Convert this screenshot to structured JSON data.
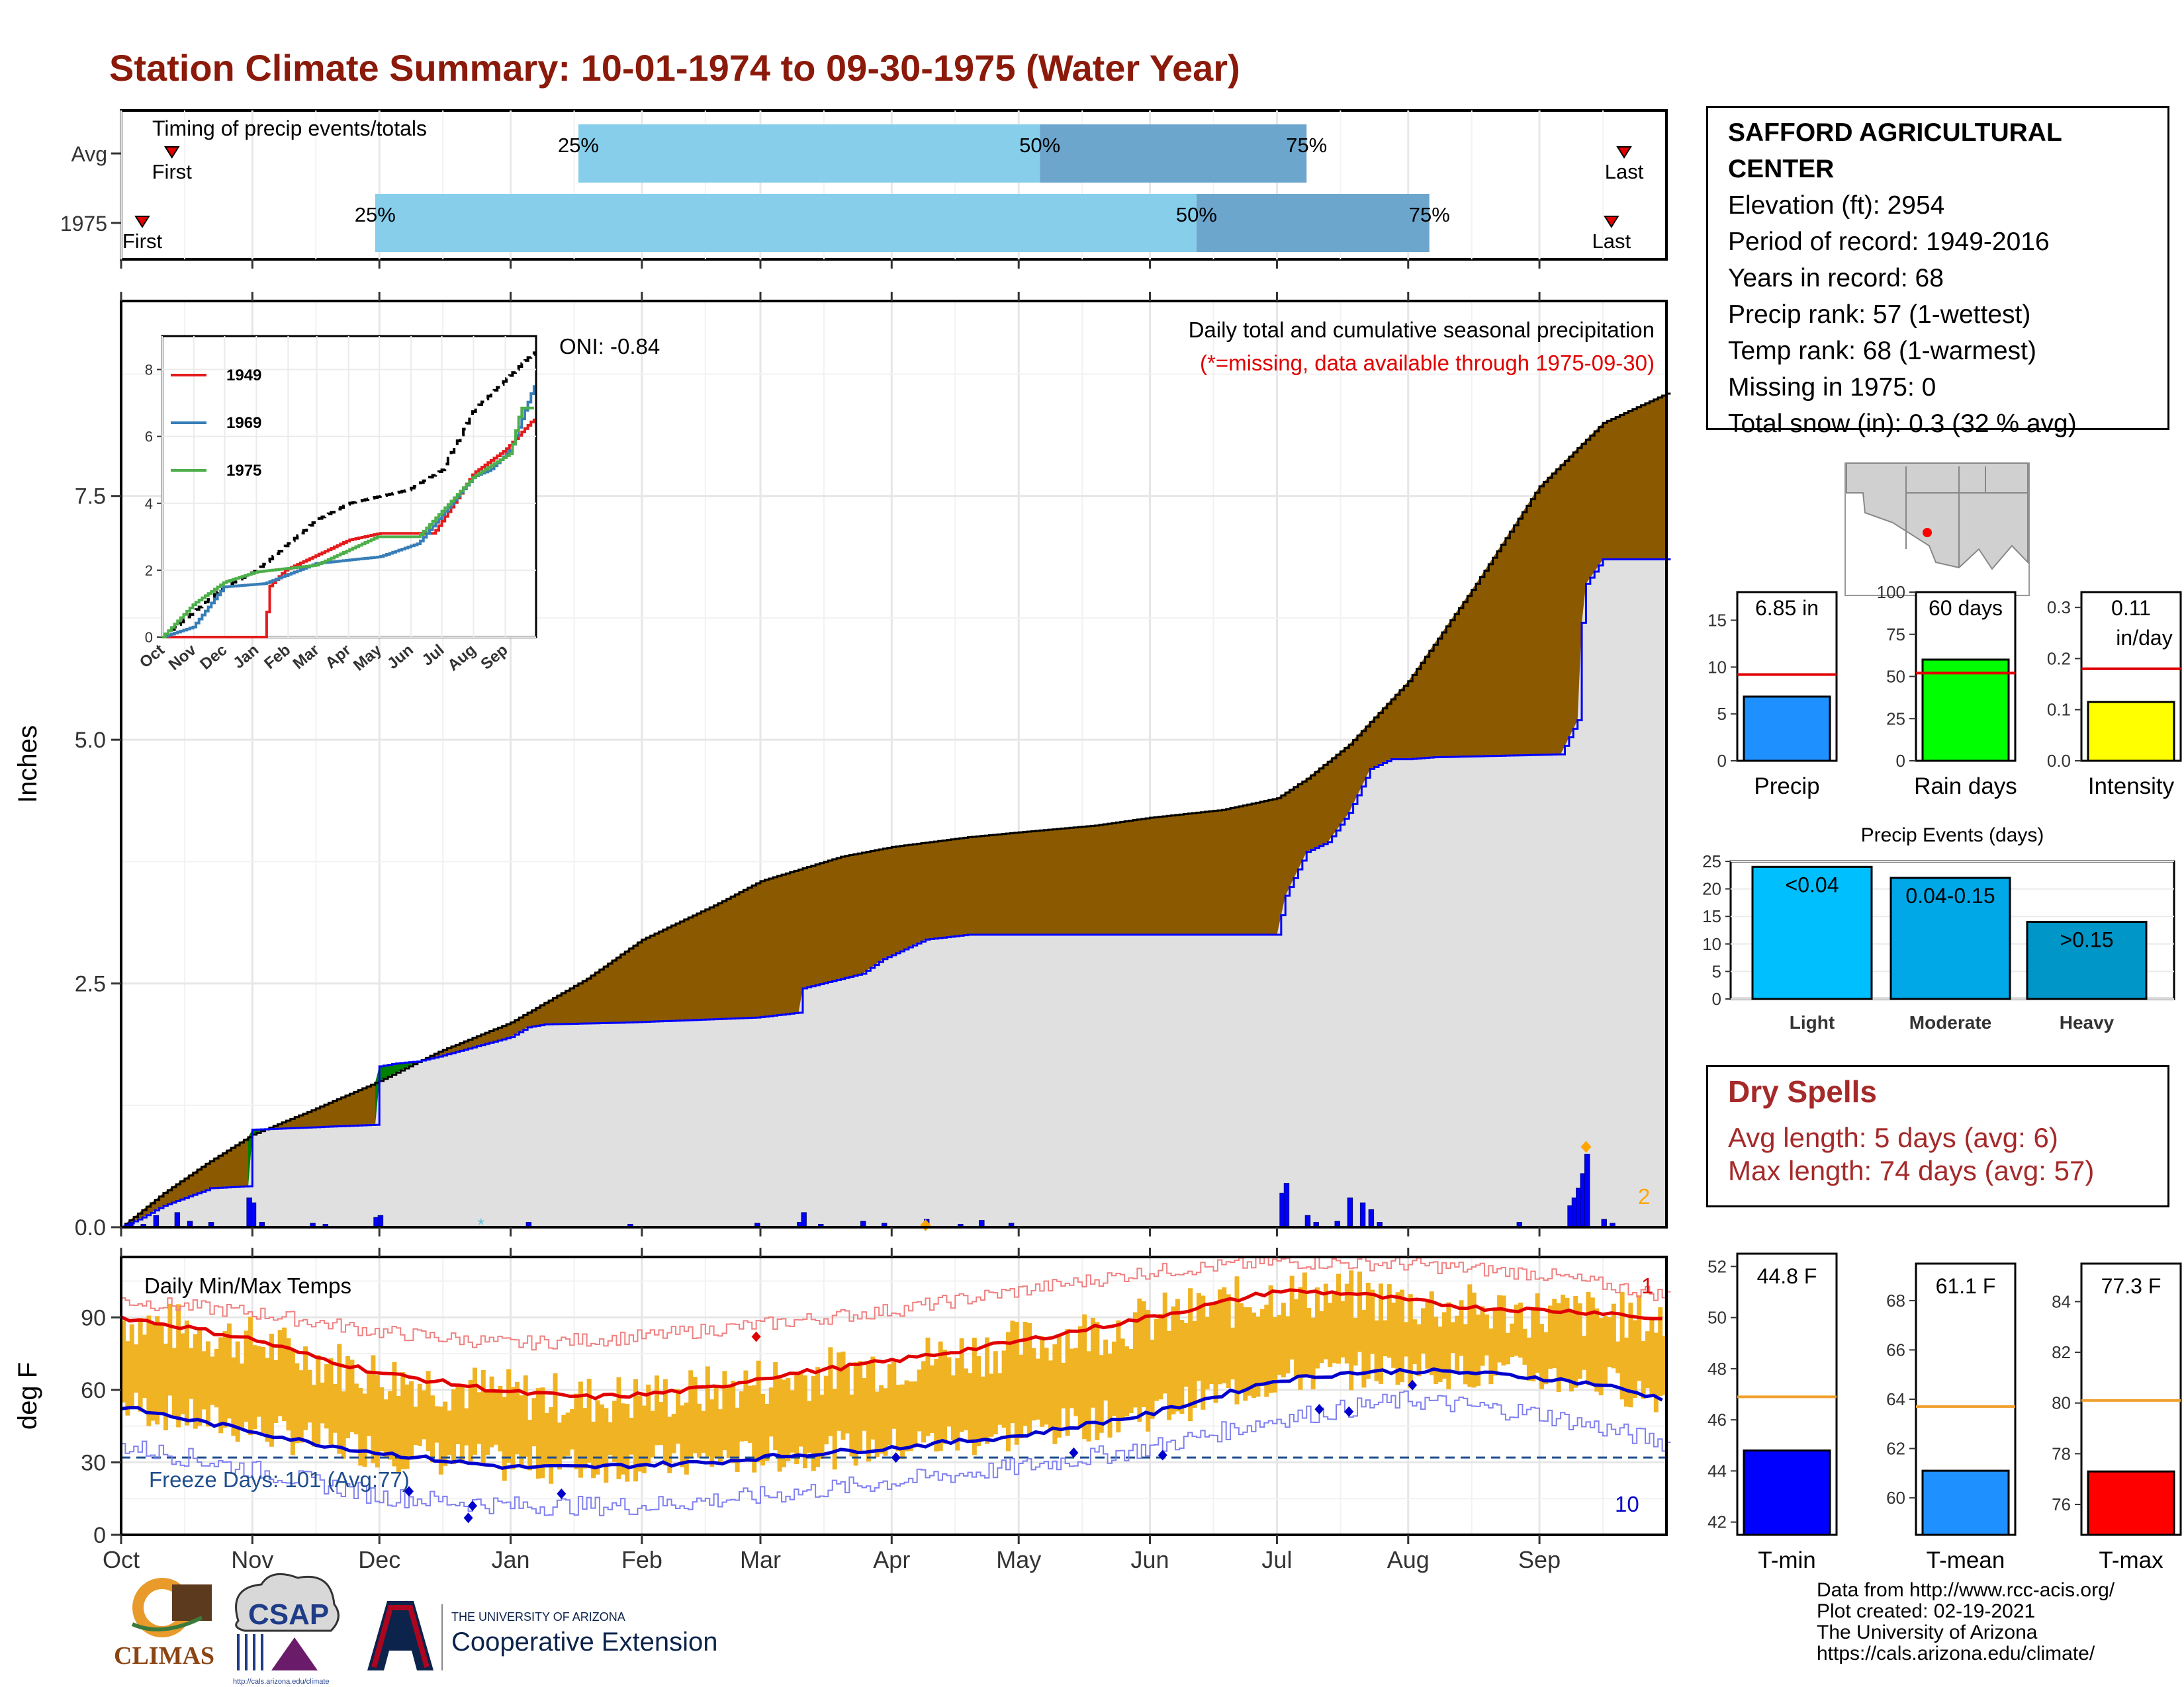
{
  "page": {
    "title": "Station Climate Summary: 10-01-1974 to 09-30-1975 (Water Year)"
  },
  "station": {
    "name": "SAFFORD AGRICULTURAL CENTER",
    "elevation": "Elevation (ft): 2954",
    "period": "Period of record: 1949-2016",
    "years": "Years in record: 68",
    "precip_rank": "Precip rank: 57 (1-wettest)",
    "temp_rank": "Temp rank: 68 (1-warmest)",
    "missing": "Missing in 1975: 0",
    "snow": "Total snow (in): 0.3 (32 % avg)"
  },
  "timing": {
    "title": "Timing of precip events/totals",
    "rows": [
      {
        "label": "Avg",
        "first_doy": 12,
        "p25": 108,
        "p50": 217,
        "p75": 280,
        "last_doy": 355
      },
      {
        "label": "1975",
        "first_doy": 5,
        "p25": 60,
        "p50": 254,
        "p75": 309,
        "last_doy": 352
      }
    ],
    "first_label": "First",
    "last_label": "Last",
    "p25_label": "25%",
    "p50_label": "50%",
    "p75_label": "75%"
  },
  "months": [
    "Oct",
    "Nov",
    "Dec",
    "Jan",
    "Feb",
    "Mar",
    "Apr",
    "May",
    "Jun",
    "Jul",
    "Aug",
    "Sep"
  ],
  "month_starts": [
    0,
    31,
    61,
    92,
    123,
    151,
    182,
    212,
    243,
    273,
    304,
    335
  ],
  "precip": {
    "ylabel": "Inches",
    "yticks": [
      "0.0",
      "2.5",
      "5.0",
      "7.5"
    ],
    "ytick_values": [
      0,
      2.5,
      5,
      7.5
    ],
    "ymax": 9.5,
    "title": "Daily total and cumulative seasonal precipitation",
    "subtitle": "(*=missing, data available through 1975-09-30)",
    "oni": "ONI: -0.84",
    "extreme_count": "2",
    "colors": {
      "above": "#008000",
      "below": "#8B5A00",
      "avgfill": "#E0E0E0",
      "daily": "#0000FF",
      "year": "#0000FF"
    }
  },
  "inset": {
    "yticks": [
      "0",
      "2",
      "4",
      "6",
      "8"
    ],
    "months": [
      "Oct",
      "Nov",
      "Dec",
      "Jan",
      "Feb",
      "Mar",
      "Apr",
      "May",
      "Jun",
      "Jul",
      "Aug",
      "Sep"
    ],
    "series": [
      {
        "name": "1949",
        "color": "#E41A1C"
      },
      {
        "name": "1969",
        "color": "#377EB8"
      },
      {
        "name": "1975",
        "color": "#4DAF4A"
      }
    ]
  },
  "temps": {
    "ylabel": "deg F",
    "title": "Daily Min/Max Temps",
    "yticks": [
      "0",
      "30",
      "60",
      "90"
    ],
    "ytick_values": [
      0,
      30,
      60,
      90
    ],
    "freeze": "Freeze Days: 101 (Avg:77)",
    "max_record_count": "1",
    "min_record_count": "10"
  },
  "bars_top": {
    "precip": {
      "label": "Precip",
      "value_text": "6.85 in",
      "value": 6.85,
      "avg": 9.2,
      "yticks": [
        "0",
        "5",
        "10",
        "15"
      ],
      "ymax": 18,
      "color": "#1E90FF"
    },
    "raindays": {
      "label": "Rain days",
      "value_text": "60 days",
      "value": 60,
      "avg": 52,
      "yticks": [
        "0",
        "25",
        "50",
        "75",
        "100"
      ],
      "ymax": 100,
      "color": "#00FF00"
    },
    "intensity": {
      "label": "Intensity",
      "value_text": "0.11",
      "value_text2": "in/day",
      "value": 0.115,
      "avg": 0.18,
      "yticks": [
        "0.0",
        "0.1",
        "0.2",
        "0.3"
      ],
      "ymax": 0.33,
      "color": "#FFFF00"
    }
  },
  "events": {
    "title": "Precip Events (days)",
    "yticks": [
      "0",
      "5",
      "10",
      "15",
      "20",
      "25"
    ],
    "bars": [
      {
        "label": "Light",
        "text": "<0.04",
        "value": 24,
        "color": "#00BFFF"
      },
      {
        "label": "Moderate",
        "text": "0.04-0.15",
        "value": 22,
        "color": "#00A8E8"
      },
      {
        "label": "Heavy",
        "text": ">0.15",
        "value": 14,
        "color": "#0096C8"
      }
    ]
  },
  "dry_spells": {
    "title": "Dry Spells",
    "avg": "Avg length: 5 days (avg: 6)",
    "max": "Max length: 74 days (avg: 57)"
  },
  "temp_bars": [
    {
      "label": "T-min",
      "value_text": "44.8 F",
      "value": 44.8,
      "avg": 46.9,
      "ymin": 41.5,
      "ymax": 52.5,
      "yticks": [
        "42",
        "44",
        "46",
        "48",
        "50",
        "52"
      ],
      "color": "#0000FF"
    },
    {
      "label": "T-mean",
      "value_text": "61.1 F",
      "value": 61.1,
      "avg": 63.7,
      "ymin": 58.5,
      "ymax": 69.5,
      "yticks": [
        "60",
        "62",
        "64",
        "66",
        "68"
      ],
      "color": "#1E90FF"
    },
    {
      "label": "T-max",
      "value_text": "77.3 F",
      "value": 77.3,
      "avg": 80.1,
      "ymin": 74.8,
      "ymax": 85.5,
      "yticks": [
        "76",
        "78",
        "80",
        "82",
        "84"
      ],
      "color": "#FF0000"
    }
  ],
  "footer": {
    "line1": "Data from http://www.rcc-acis.org/",
    "line2": "Plot created: 02-19-2021",
    "line3": "The University of Arizona",
    "line4": "https://cals.arizona.edu/climate/",
    "climas": "CLIMAS",
    "csap": "CSAP",
    "csap_url": "http://cals.arizona.edu/climate",
    "ua_small": "THE UNIVERSITY OF ARIZONA",
    "ua_big": "Cooperative Extension"
  },
  "chart_data": [
    {
      "type": "area",
      "title": "Daily total and cumulative seasonal precipitation",
      "ylabel": "Inches",
      "ylim": [
        0,
        9.5
      ],
      "series": [
        {
          "name": "average_cumulative",
          "x_doy": [
            0,
            10,
            20,
            31,
            45,
            61,
            75,
            92,
            110,
            123,
            140,
            151,
            170,
            182,
            200,
            212,
            230,
            243,
            260,
            273,
            280,
            290,
            304,
            320,
            335,
            350,
            365
          ],
          "values": [
            0,
            0.35,
            0.65,
            0.95,
            1.2,
            1.5,
            1.8,
            2.1,
            2.55,
            2.95,
            3.3,
            3.55,
            3.8,
            3.9,
            4.0,
            4.05,
            4.12,
            4.2,
            4.28,
            4.4,
            4.6,
            4.95,
            5.6,
            6.6,
            7.6,
            8.25,
            8.55
          ]
        },
        {
          "name": "1975_cumulative",
          "x_doy": [
            0,
            5,
            10,
            15,
            20,
            21,
            30,
            31,
            60,
            61,
            65,
            70,
            75,
            92,
            96,
            100,
            120,
            150,
            160,
            161,
            175,
            180,
            190,
            200,
            210,
            240,
            270,
            273,
            275,
            280,
            285,
            290,
            295,
            300,
            304,
            310,
            340,
            344,
            345,
            346,
            350,
            365
          ],
          "values": [
            0,
            0.1,
            0.22,
            0.3,
            0.38,
            0.4,
            0.42,
            1.0,
            1.05,
            1.65,
            1.68,
            1.7,
            1.75,
            1.95,
            2.05,
            2.08,
            2.1,
            2.15,
            2.2,
            2.45,
            2.6,
            2.75,
            2.95,
            3.0,
            3.0,
            3.0,
            3.0,
            3.0,
            3.4,
            3.85,
            3.95,
            4.25,
            4.7,
            4.8,
            4.8,
            4.82,
            4.85,
            5.2,
            6.2,
            6.6,
            6.85,
            6.85
          ]
        }
      ]
    },
    {
      "type": "line",
      "title": "",
      "ylim": [
        0,
        9
      ],
      "series": [
        {
          "name": "avg",
          "x_doy": [
            0,
            60,
            92,
            150,
            182,
            240,
            273,
            304,
            335,
            365
          ],
          "values": [
            0,
            1.5,
            2.0,
            3.5,
            4.0,
            4.4,
            5.0,
            6.8,
            7.7,
            8.6
          ]
        },
        {
          "name": "1949",
          "x_doy": [
            0,
            100,
            104,
            120,
            182,
            212,
            265,
            304,
            335,
            365
          ],
          "values": [
            0,
            0,
            1.5,
            2.0,
            2.9,
            3.1,
            3.1,
            4.9,
            5.6,
            6.6
          ]
        },
        {
          "name": "1969",
          "x_doy": [
            0,
            30,
            60,
            100,
            150,
            212,
            250,
            304,
            320,
            340,
            365
          ],
          "values": [
            0,
            0.3,
            1.5,
            1.6,
            2.2,
            2.4,
            2.8,
            4.8,
            5.0,
            5.6,
            7.7
          ]
        },
        {
          "name": "1975",
          "x_doy": [
            0,
            31,
            61,
            92,
            150,
            210,
            250,
            304,
            340,
            350,
            365
          ],
          "values": [
            0,
            1.0,
            1.65,
            1.95,
            2.15,
            3.0,
            3.0,
            4.8,
            5.5,
            6.85,
            6.85
          ]
        }
      ]
    },
    {
      "type": "line",
      "title": "Daily Min/Max Temps",
      "ylabel": "deg F",
      "ylim": [
        0,
        115
      ],
      "series": [
        {
          "name": "avg_max",
          "x_doy": [
            0,
            15,
            31,
            45,
            61,
            92,
            110,
            123,
            140,
            151,
            182,
            212,
            243,
            265,
            273,
            290,
            304,
            320,
            335,
            350,
            365
          ],
          "values": [
            90,
            86,
            81,
            74,
            67,
            59,
            57,
            58,
            61,
            65,
            72,
            80,
            90,
            98,
            101,
            100,
            97,
            94,
            93,
            92,
            89
          ]
        },
        {
          "name": "avg_min",
          "x_doy": [
            0,
            15,
            31,
            45,
            61,
            80,
            92,
            110,
            123,
            140,
            151,
            182,
            212,
            243,
            260,
            273,
            290,
            304,
            320,
            335,
            350,
            365
          ],
          "values": [
            53,
            48,
            43,
            38,
            34,
            30,
            28,
            28,
            29,
            30,
            32,
            36,
            41,
            50,
            58,
            64,
            67,
            68,
            67,
            65,
            62,
            56
          ]
        },
        {
          "name": "record_max",
          "x_doy": [
            0,
            31,
            61,
            92,
            123,
            151,
            182,
            212,
            243,
            273,
            304,
            335,
            365
          ],
          "values": [
            97,
            92,
            84,
            79,
            82,
            87,
            93,
            101,
            109,
            113,
            112,
            108,
            99
          ]
        },
        {
          "name": "record_min",
          "x_doy": [
            0,
            31,
            61,
            92,
            123,
            151,
            182,
            212,
            243,
            273,
            304,
            335,
            365
          ],
          "values": [
            37,
            27,
            16,
            12,
            12,
            16,
            22,
            28,
            36,
            48,
            56,
            50,
            38
          ]
        }
      ]
    },
    {
      "type": "bar",
      "title": "Precip Events (days)",
      "categories": [
        "Light",
        "Moderate",
        "Heavy"
      ],
      "values": [
        24,
        22,
        14
      ],
      "ylim": [
        0,
        25
      ]
    },
    {
      "type": "bar",
      "categories": [
        "Precip",
        "Rain days",
        "Intensity"
      ],
      "series": [
        {
          "name": "1975",
          "values": [
            6.85,
            60,
            0.11
          ]
        },
        {
          "name": "avg",
          "values": [
            9.2,
            52,
            0.18
          ]
        }
      ]
    },
    {
      "type": "bar",
      "categories": [
        "T-min",
        "T-mean",
        "T-max"
      ],
      "series": [
        {
          "name": "1975",
          "values": [
            44.8,
            61.1,
            77.3
          ]
        },
        {
          "name": "avg",
          "values": [
            46.9,
            63.7,
            80.1
          ]
        }
      ]
    }
  ]
}
